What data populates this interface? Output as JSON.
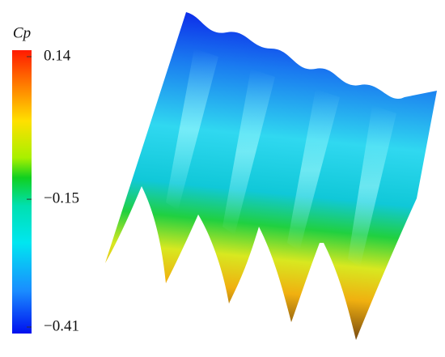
{
  "colorbar": {
    "label": "Cp",
    "range": [
      -0.41,
      0.14
    ],
    "ticks": [
      {
        "value": 0.14,
        "label": "0.14"
      },
      {
        "value": -0.15,
        "label": "−0.15"
      },
      {
        "value": -0.41,
        "label": "−0.41"
      }
    ]
  }
}
